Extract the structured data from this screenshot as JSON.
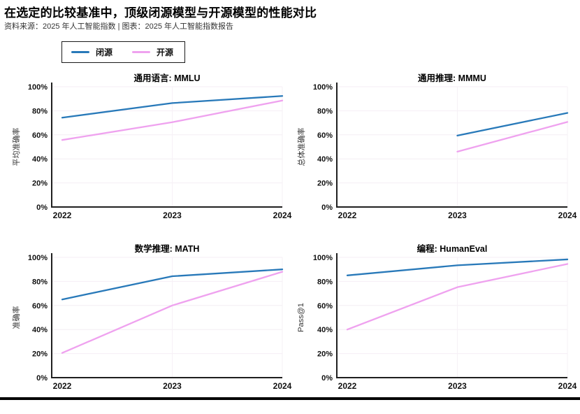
{
  "header": {
    "title": "在选定的比较基准中，顶级闭源模型与开源模型的性能对比",
    "source_note": "资料来源：2025 年人工智能指数 | 图表：2025 年人工智能指数报告"
  },
  "legend": {
    "closed_label": "闭源",
    "open_label": "开源"
  },
  "colors": {
    "closed": "#2879b9",
    "open": "#efa2ef"
  },
  "axes": {
    "x_ticks": [
      "2022",
      "2023",
      "2024"
    ],
    "y_ticks": [
      "0%",
      "20%",
      "40%",
      "60%",
      "80%",
      "100%"
    ]
  },
  "chart_data": {
    "type": "line",
    "x": [
      2022,
      2023,
      2024
    ],
    "ylim": [
      0,
      100
    ],
    "grid": true,
    "legend_position": "top-left",
    "title": "在选定的比较基准中，顶级闭源模型与开源模型的性能对比",
    "panels": [
      {
        "title": "通用语言: MMLU",
        "ylabel": "平均准确率",
        "series": [
          {
            "name": "闭源",
            "values": [
              74.3,
              86.4,
              92.3
            ]
          },
          {
            "name": "开源",
            "values": [
              55.7,
              70.5,
              88.5
            ]
          }
        ]
      },
      {
        "title": "通用推理: MMMU",
        "ylabel": "总体准确率",
        "series": [
          {
            "name": "闭源",
            "values": [
              null,
              59.4,
              78.2
            ]
          },
          {
            "name": "开源",
            "values": [
              null,
              46.0,
              70.7
            ]
          }
        ]
      },
      {
        "title": "数学推理: MATH",
        "ylabel": "准确率",
        "series": [
          {
            "name": "闭源",
            "values": [
              65.0,
              84.3,
              90.0
            ]
          },
          {
            "name": "开源",
            "values": [
              20.5,
              60.0,
              88.0
            ]
          }
        ]
      },
      {
        "title": "编程: HumanEval",
        "ylabel": "Pass@1",
        "series": [
          {
            "name": "闭源",
            "values": [
              85.0,
              93.4,
              98.3
            ]
          },
          {
            "name": "开源",
            "values": [
              40.0,
              75.2,
              94.5
            ]
          }
        ]
      }
    ]
  }
}
